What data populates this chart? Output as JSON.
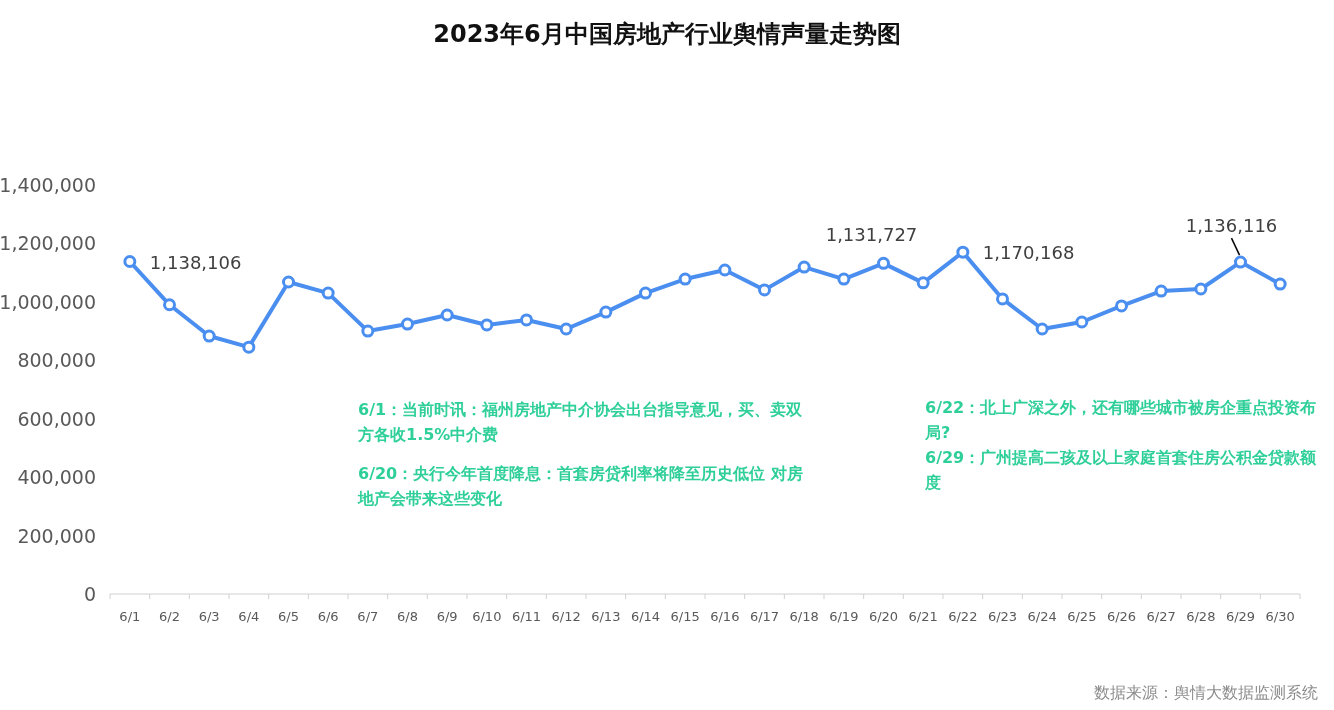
{
  "chart_data": {
    "type": "line",
    "title": "2023年6月中国房地产行业舆情声量走势图",
    "categories": [
      "6/1",
      "6/2",
      "6/3",
      "6/4",
      "6/5",
      "6/6",
      "6/7",
      "6/8",
      "6/9",
      "6/10",
      "6/11",
      "6/12",
      "6/13",
      "6/14",
      "6/15",
      "6/16",
      "6/17",
      "6/18",
      "6/19",
      "6/20",
      "6/21",
      "6/22",
      "6/23",
      "6/24",
      "6/25",
      "6/26",
      "6/27",
      "6/28",
      "6/29",
      "6/30"
    ],
    "series": [
      {
        "color": "#4a8ef0",
        "values": [
          1138106,
          990000,
          883000,
          845000,
          1068000,
          1030000,
          900000,
          924000,
          955000,
          921000,
          938000,
          907000,
          965000,
          1030000,
          1078000,
          1109000,
          1041000,
          1119000,
          1078000,
          1131727,
          1065000,
          1170168,
          1010000,
          907000,
          931000,
          986000,
          1037000,
          1044000,
          1136116,
          1061000
        ],
        "value_labels": [
          "1,138,106",
          null,
          null,
          null,
          null,
          null,
          null,
          null,
          null,
          null,
          null,
          null,
          null,
          null,
          null,
          null,
          null,
          null,
          null,
          "1,131,727",
          null,
          "1,170,168",
          null,
          null,
          null,
          null,
          null,
          null,
          "1,136,116",
          null
        ]
      }
    ],
    "ylim": [
      0,
      1400000
    ],
    "yticks": [
      {
        "value": 0,
        "label": "0"
      },
      {
        "value": 200000,
        "label": "200,000"
      },
      {
        "value": 400000,
        "label": "400,000"
      },
      {
        "value": 600000,
        "label": "600,000"
      },
      {
        "value": 800000,
        "label": "800,000"
      },
      {
        "value": 1000000,
        "label": "1,000,000"
      },
      {
        "value": 1200000,
        "label": "1,200,000"
      },
      {
        "value": 1400000,
        "label": "1,400,000"
      }
    ],
    "grid": false,
    "marker": "circle",
    "line_style": "solid",
    "annotations": [
      "6/1：当前时讯：福州房地产中介协会出台指导意见，买、卖双方各收1.5%中介费",
      "6/20：央行今年首度降息：首套房贷利率将降至历史低位 对房地产会带来这些变化",
      "6/22：北上广深之外，还有哪些城市被房企重点投资布局?",
      "6/29：广州提高二孩及以上家庭首套住房公积金贷款额度",
      "数据来源：舆情大数据监测系统"
    ]
  }
}
